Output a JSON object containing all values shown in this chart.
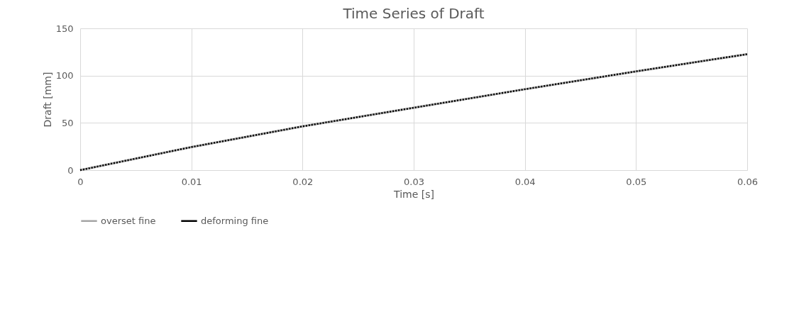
{
  "chart_data": {
    "type": "line",
    "title": "Time Series of Draft",
    "xlabel": "Time [s]",
    "ylabel": "Draft [mm]",
    "x": [
      0,
      0.01,
      0.02,
      0.03,
      0.04,
      0.05,
      0.06
    ],
    "series": [
      {
        "name": "overset fine",
        "color": "#a5a5a5",
        "line_style": "solid",
        "values": [
          0,
          24.4,
          46.3,
          66,
          85.6,
          104.5,
          122.7
        ]
      },
      {
        "name": "deforming fine",
        "color": "#000000",
        "line_style": "dotted",
        "values": [
          0,
          24.4,
          46.3,
          66,
          85.6,
          104.5,
          122.7
        ]
      }
    ],
    "xlim": [
      0,
      0.06
    ],
    "xticks": [
      {
        "value": 0,
        "label": "0"
      },
      0.01,
      0.02,
      0.03,
      0.04,
      0.05,
      0.06
    ],
    "ylim": [
      0,
      150
    ],
    "yticks": [
      0,
      50,
      100,
      150
    ],
    "grid": true,
    "legend": "bottom",
    "marker": "none"
  }
}
